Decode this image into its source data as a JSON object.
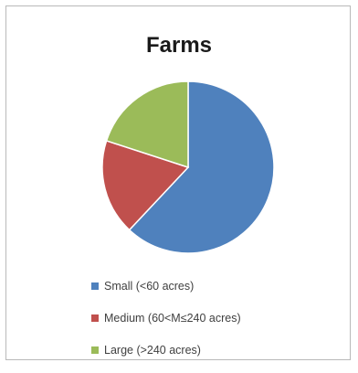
{
  "chart_data": {
    "type": "pie",
    "title": "Farms",
    "categories": [
      "Small (<60 acres)",
      "Medium (60<M≤240 acres)",
      "Large (>240 acres)"
    ],
    "values": [
      62,
      18,
      20
    ],
    "colors": [
      "#4f81bd",
      "#c0504d",
      "#9bbb59"
    ],
    "legend_position": "bottom",
    "start_angle": "12 o'clock",
    "direction": "clockwise"
  }
}
